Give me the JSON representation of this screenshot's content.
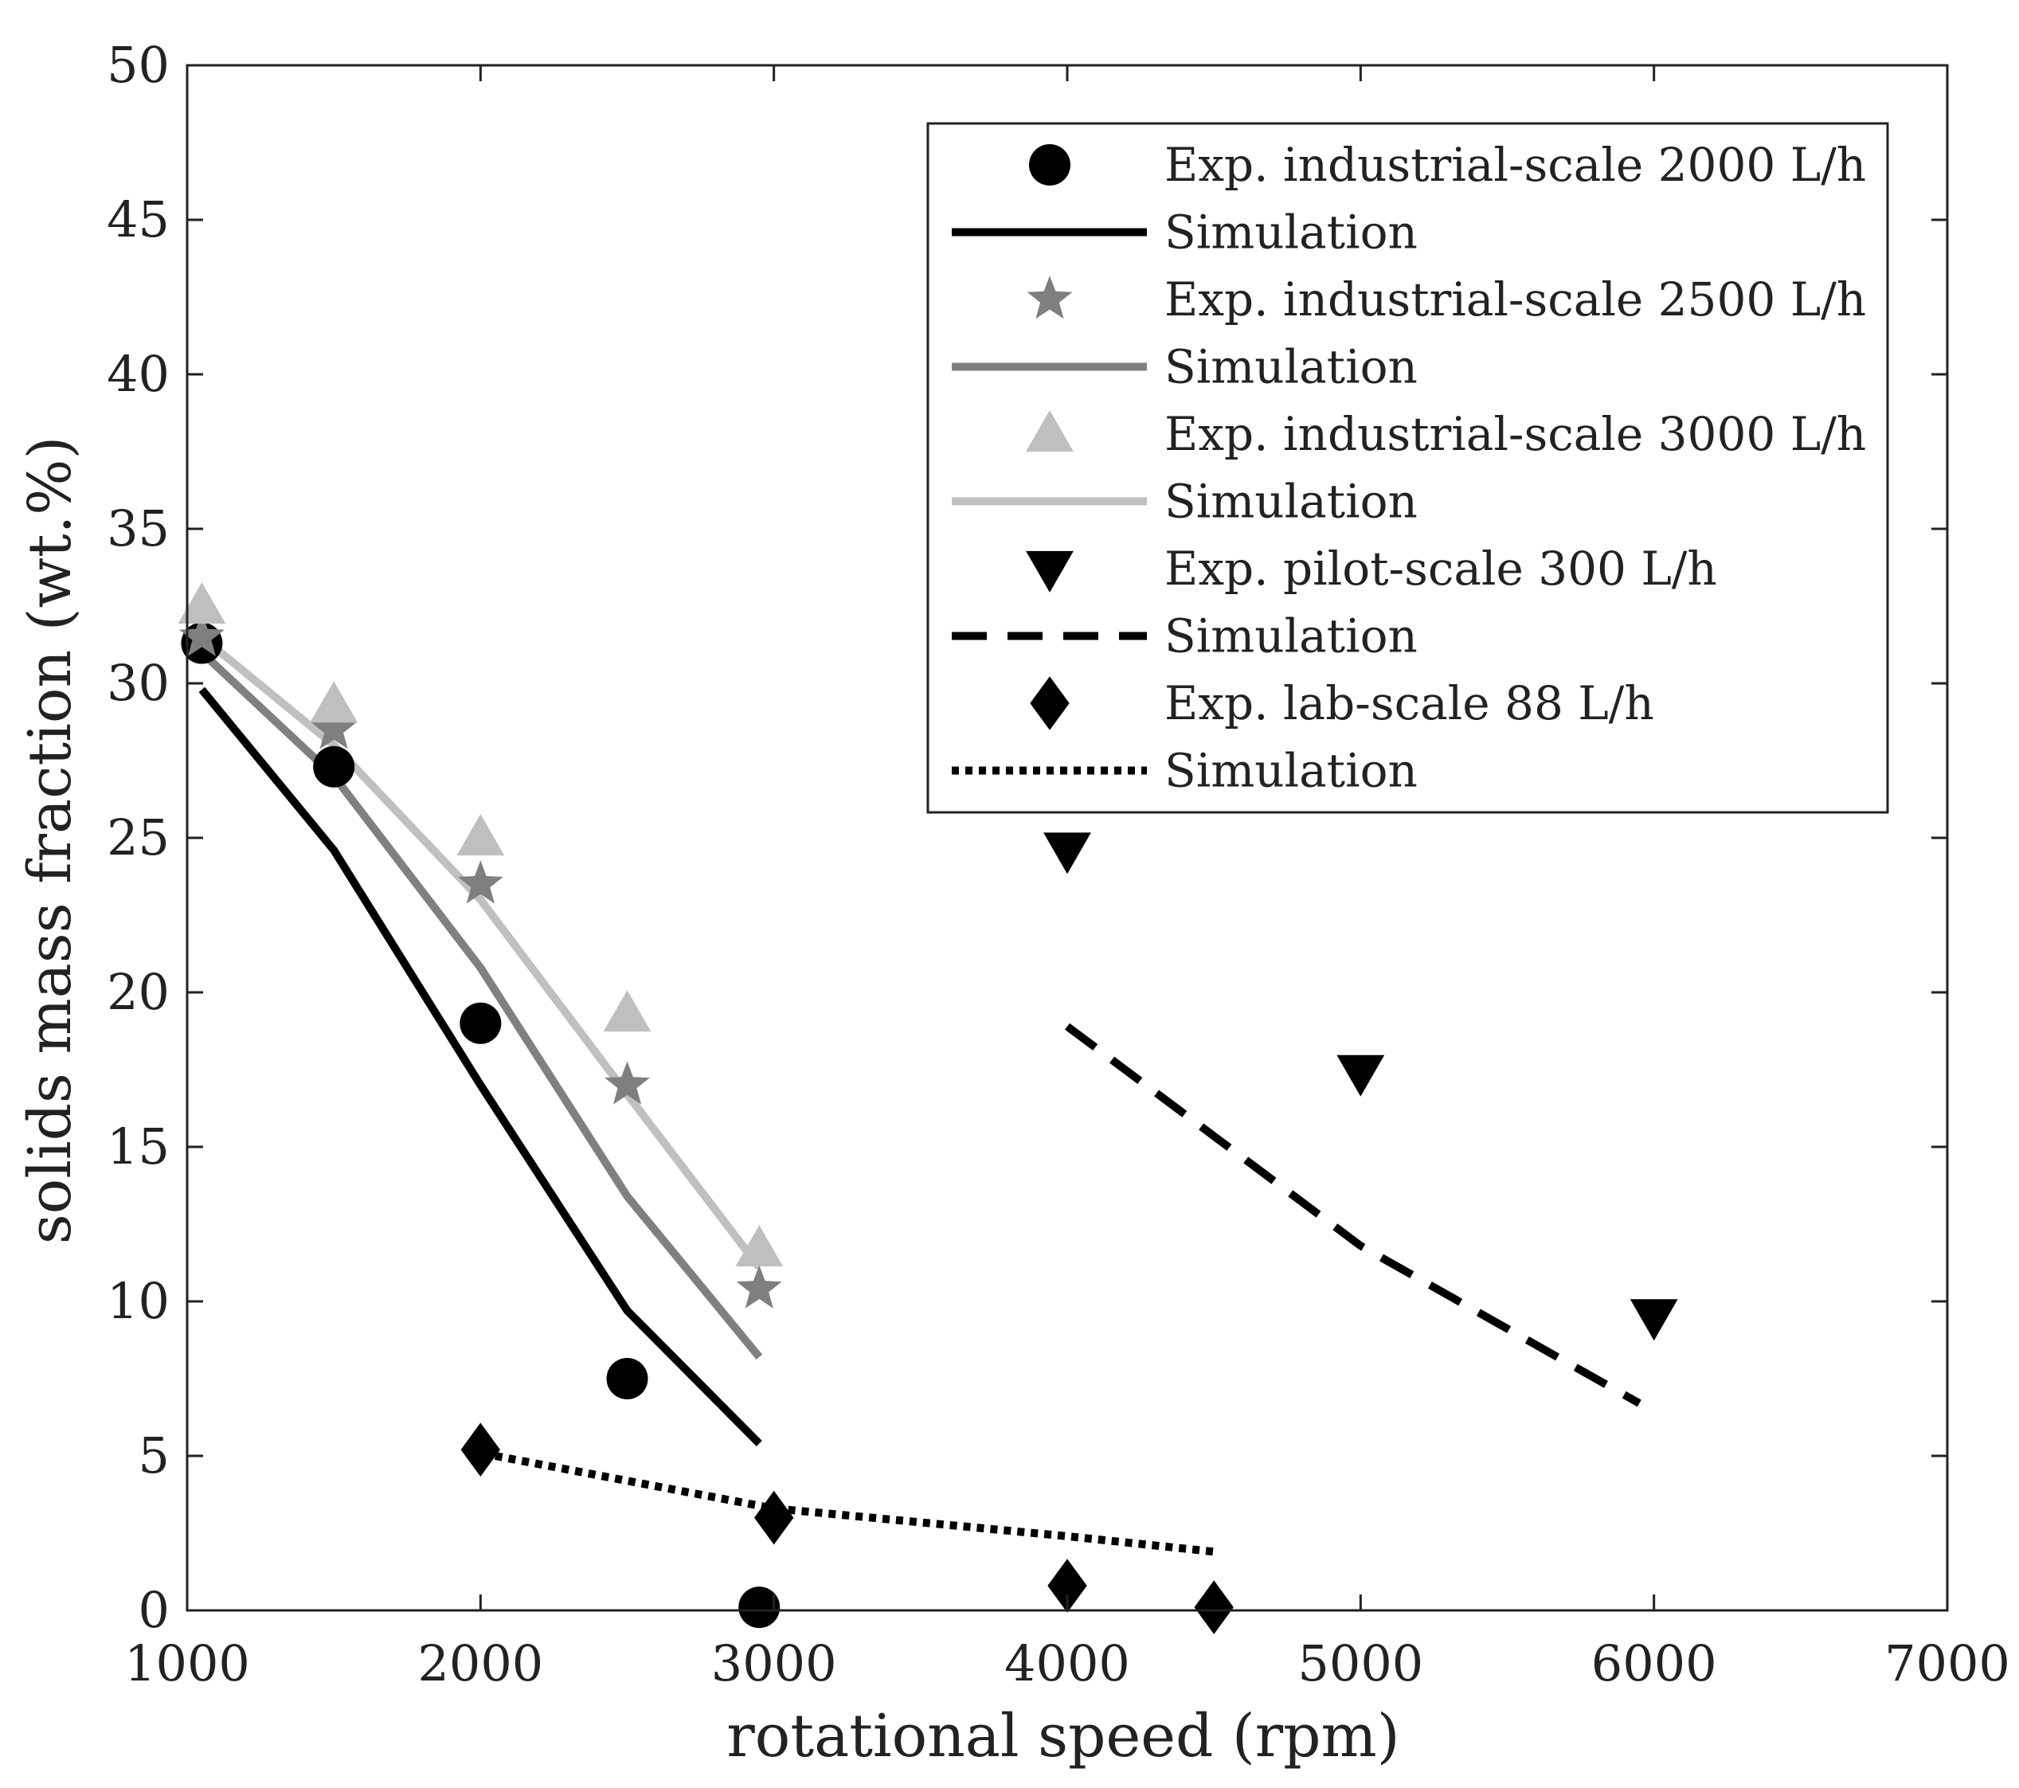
{
  "chart_data": {
    "type": "line",
    "title": "",
    "xlabel": "rotational speed (rpm)",
    "ylabel": "solids mass fraction (wt.%)",
    "xlim": [
      1000,
      7000
    ],
    "ylim": [
      0,
      50
    ],
    "xticks": [
      1000,
      2000,
      3000,
      4000,
      5000,
      6000,
      7000
    ],
    "yticks": [
      0,
      5,
      10,
      15,
      20,
      25,
      30,
      35,
      40,
      45,
      50
    ],
    "grid": false,
    "legend_position": "top-right",
    "series": [
      {
        "name": "Exp. industrial-scale 2000 L/h",
        "kind": "marker",
        "marker": "circle",
        "color": "#000000",
        "x": [
          1050,
          1500,
          2000,
          2500,
          2950
        ],
        "y": [
          31.3,
          27.3,
          19.0,
          7.5,
          0.1
        ]
      },
      {
        "name": "Simulation",
        "kind": "line",
        "dash": "solid",
        "color": "#000000",
        "x": [
          1050,
          1500,
          2000,
          2500,
          2950
        ],
        "y": [
          29.8,
          24.6,
          17.0,
          9.7,
          5.4
        ]
      },
      {
        "name": "Exp. industrial-scale 2500 L/h",
        "kind": "marker",
        "marker": "star",
        "color": "#7f7f7f",
        "x": [
          1050,
          1500,
          2000,
          2500,
          2950
        ],
        "y": [
          31.5,
          28.5,
          23.5,
          17.0,
          10.4
        ]
      },
      {
        "name": "Simulation",
        "kind": "line",
        "dash": "solid",
        "color": "#808080",
        "x": [
          1050,
          1500,
          2000,
          2500,
          2950
        ],
        "y": [
          31.0,
          27.0,
          20.8,
          13.4,
          8.2
        ]
      },
      {
        "name": "Exp. industrial-scale 3000 L/h",
        "kind": "marker",
        "marker": "triangle-up",
        "color": "#bfbfbf",
        "x": [
          1050,
          1500,
          2000,
          2500,
          2950
        ],
        "y": [
          32.5,
          29.3,
          25.0,
          19.3,
          11.7
        ]
      },
      {
        "name": "Simulation",
        "kind": "line",
        "dash": "solid",
        "color": "#c0c0c0",
        "x": [
          1050,
          1500,
          2000,
          2500,
          2950
        ],
        "y": [
          31.5,
          28.0,
          23.0,
          16.7,
          11.1
        ]
      },
      {
        "name": "Exp. pilot-scale 300 L/h",
        "kind": "marker",
        "marker": "triangle-down",
        "color": "#000000",
        "x": [
          4000,
          5000,
          6000
        ],
        "y": [
          24.6,
          17.4,
          9.5
        ]
      },
      {
        "name": "Simulation",
        "kind": "line",
        "dash": "dashed",
        "color": "#000000",
        "x": [
          4000,
          5000,
          5950
        ],
        "y": [
          18.9,
          11.8,
          6.7
        ]
      },
      {
        "name": "Exp. lab-scale 88 L/h",
        "kind": "marker",
        "marker": "diamond",
        "color": "#000000",
        "x": [
          2000,
          3000,
          4000,
          4500
        ],
        "y": [
          5.2,
          3.0,
          0.8,
          0.1
        ]
      },
      {
        "name": "Simulation",
        "kind": "line",
        "dash": "dotted",
        "color": "#000000",
        "x": [
          2050,
          3000,
          4000,
          4500
        ],
        "y": [
          5.0,
          3.3,
          2.4,
          1.9
        ]
      }
    ]
  }
}
